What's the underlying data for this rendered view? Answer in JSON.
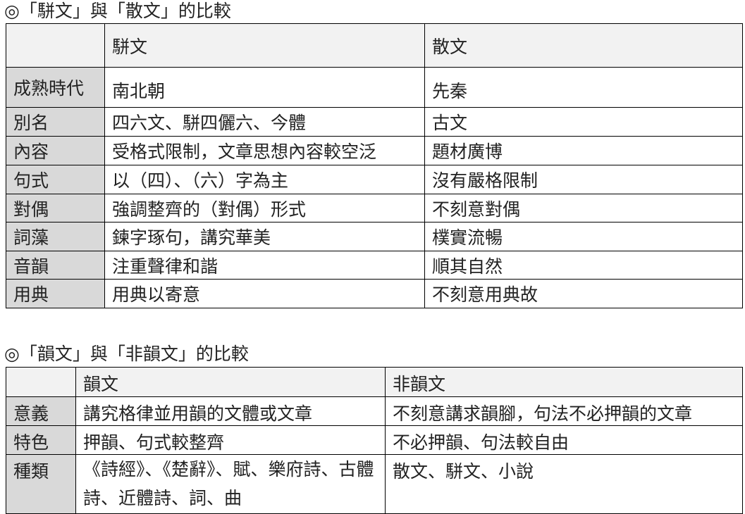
{
  "section1": {
    "title": "◎「駢文」與「散文」的比較",
    "headers": [
      "",
      "駢文",
      "散文"
    ],
    "rows": [
      {
        "label": "成熟時代",
        "a": "南北朝",
        "b": "先秦"
      },
      {
        "label": "別名",
        "a": "四六文、駢四儷六、今體",
        "b": "古文"
      },
      {
        "label": "內容",
        "a": "受格式限制，文章思想內容較空泛",
        "b": "題材廣博"
      },
      {
        "label": "句式",
        "a": "以（四）、（六）字為主",
        "b": "沒有嚴格限制"
      },
      {
        "label": "對偶",
        "a": "強調整齊的（對偶）形式",
        "b": "不刻意對偶"
      },
      {
        "label": "詞藻",
        "a": "鍊字琢句，講究華美",
        "b": "樸實流暢"
      },
      {
        "label": "音韻",
        "a": "注重聲律和諧",
        "b": "順其自然"
      },
      {
        "label": "用典",
        "a": "用典以寄意",
        "b": "不刻意用典故"
      }
    ]
  },
  "section2": {
    "title": "◎「韻文」與「非韻文」的比較",
    "headers": [
      "",
      "韻文",
      "非韻文"
    ],
    "rows": [
      {
        "label": "意義",
        "a": "講究格律並用韻的文體或文章",
        "b": "不刻意講求韻腳，句法不必押韻的文章"
      },
      {
        "label": "特色",
        "a": "押韻、句式較整齊",
        "b": "不必押韻、句法較自由"
      },
      {
        "label": "種類",
        "a": "《詩經》、《楚辭》、賦、樂府詩、古體詩、近體詩、詞、曲",
        "b": "散文、駢文、小說"
      }
    ]
  }
}
